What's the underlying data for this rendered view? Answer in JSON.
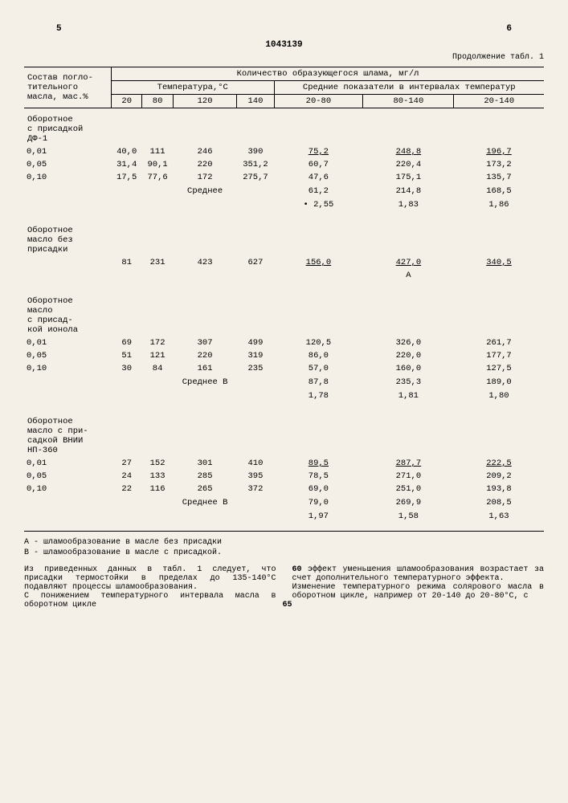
{
  "page_left_num": "5",
  "doc_number": "1043139",
  "page_right_num": "6",
  "continued": "Продолжение табл. 1",
  "headers": {
    "composition": "Состав погло-\nтительного\nмасла, мас.%",
    "qty": "Количество образующегося шлама, мг/л",
    "temp": "Температура,°С",
    "avg": "Средние показатели в интервалах температур",
    "c20": "20",
    "c80": "80",
    "c120": "120",
    "c140": "140",
    "r1": "20-80",
    "r2": "80-140",
    "r3": "20-140"
  },
  "sections": [
    {
      "label": "Оборотное\nс присадкой\nДФ-1",
      "rows": [
        {
          "p": "0,01",
          "t20": "40,0",
          "t80": "111",
          "t120": "246",
          "t140": "390",
          "a": "75,2",
          "b": "248,8",
          "c": "196,7",
          "u": true
        },
        {
          "p": "0,05",
          "t20": "31,4",
          "t80": "90,1",
          "t120": "220",
          "t140": "351,2",
          "a": "60,7",
          "b": "220,4",
          "c": "173,2"
        },
        {
          "p": "0,10",
          "t20": "17,5",
          "t80": "77,6",
          "t120": "172",
          "t140": "275,7",
          "a": "47,6",
          "b": "175,1",
          "c": "135,7"
        }
      ],
      "avg_label": "Среднее",
      "avg": {
        "a": "61,2",
        "b": "214,8",
        "c": "168,5"
      },
      "ratio": {
        "a": "• 2,55",
        "b": "1,83",
        "c": "1,86"
      }
    },
    {
      "label": "Оборотное\nмасло без\nприсадки",
      "rows": [
        {
          "p": "",
          "t20": "81",
          "t80": "231",
          "t120": "423",
          "t140": "627",
          "a": "156,0",
          "b": "427,0",
          "c": "340,5",
          "u": true
        }
      ],
      "mark": "А"
    },
    {
      "label": "Оборотное\nмасло\nс присад-\nкой ионола",
      "rows": [
        {
          "p": "0,01",
          "t20": "69",
          "t80": "172",
          "t120": "307",
          "t140": "499",
          "a": "120,5",
          "b": "326,0",
          "c": "261,7"
        },
        {
          "p": "0,05",
          "t20": "51",
          "t80": "121",
          "t120": "220",
          "t140": "319",
          "a": "86,0",
          "b": "220,0",
          "c": "177,7"
        },
        {
          "p": "0,10",
          "t20": "30",
          "t80": "84",
          "t120": "161",
          "t140": "235",
          "a": "57,0",
          "b": "160,0",
          "c": "127,5"
        }
      ],
      "avg_label": "Среднее В",
      "avg": {
        "a": "87,8",
        "b": "235,3",
        "c": "189,0"
      },
      "ratio": {
        "a": "1,78",
        "b": "1,81",
        "c": "1,80"
      }
    },
    {
      "label": "Оборотное\nмасло с при-\nсадкой ВНИИ\nНП-360",
      "rows": [
        {
          "p": "0,01",
          "t20": "27",
          "t80": "152",
          "t120": "301",
          "t140": "410",
          "a": "89,5",
          "b": "287,7",
          "c": "222,5",
          "u": true
        },
        {
          "p": "0,05",
          "t20": "24",
          "t80": "133",
          "t120": "285",
          "t140": "395",
          "a": "78,5",
          "b": "271,0",
          "c": "209,2"
        },
        {
          "p": "0,10",
          "t20": "22",
          "t80": "116",
          "t120": "265",
          "t140": "372",
          "a": "69,0",
          "b": "251,0",
          "c": "193,8"
        }
      ],
      "avg_label": "Среднее В",
      "avg": {
        "a": "79,0",
        "b": "269,9",
        "c": "208,5"
      },
      "ratio": {
        "a": "1,97",
        "b": "1,58",
        "c": "1,63"
      }
    }
  ],
  "footnotes": {
    "a": "А - шламообразование в масле без присадки",
    "b": "В - шламообразование в масле с присадкой."
  },
  "text_left": "Из приведенных данных в табл. 1 следует, что присадки термостойки в пределах до 135-140°С подавляют процессы шламообразования.\nС понижением температурного интервала масла в оборотном цикле",
  "text_right": "эффект уменьшения шламообразования возрастает за счет дополнительного температурного эффекта.\nИзменение температурного режима солярового масла в оборотном цикле, например от 20-140 до 20-80°С, с",
  "ln60": "60",
  "ln65": "65"
}
